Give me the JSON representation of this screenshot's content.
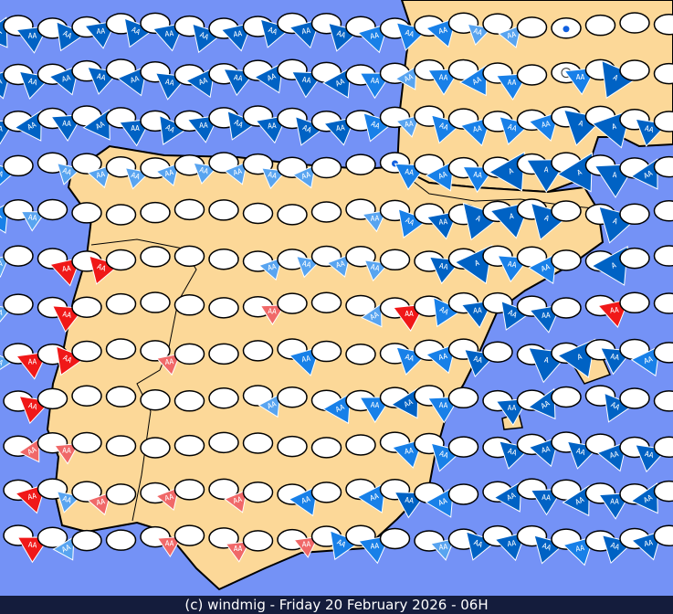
{
  "footer": {
    "text": "(c) windmig - Friday 20 February 2026 - 06H"
  },
  "colors": {
    "ocean": "#7492f6",
    "land": "#fcd898",
    "border": "#000000",
    "station": "#ffffff"
  },
  "arrow_types": {
    "b": {
      "color": "#0062c4",
      "label": "AA",
      "size": "medium"
    },
    "B": {
      "color": "#0062c4",
      "label": "A",
      "size": "large"
    },
    "m": {
      "color": "#1880e8",
      "label": "AA",
      "size": "medium"
    },
    "l": {
      "color": "#58a4f0",
      "label": "AA",
      "size": "small"
    },
    "r": {
      "color": "#f01818",
      "label": "AA",
      "size": "medium"
    },
    "p": {
      "color": "#f06868",
      "label": "AA",
      "size": "small"
    }
  },
  "station_icons": {
    "d": "rain-drop-icon",
    "c": "crosshair-icon"
  },
  "grid_rows": [
    "bbbbbbbbbbbmmmlld...",
    "bbbbbbbbbbbmlmmmcmB.",
    "bbbbbbbbbbbmlmmmmBBb",
    "m.llllllll.dmmmBBBBb",
    "ml.........lmbBBB.B.",
    "l.rr....llll.bBmm.B.",
    "l.r.....p..lrmbbb.r.",
    "lrr..p...m..mmb.BBbm",
    ".r......l.mmbm.bb.b.",
    ".pp.........mm.bbbbb",
    ".rlp.p.p.m.mbm.bbbbb",
    ".rl..p.p.pmm.lbbbmbb"
  ]
}
